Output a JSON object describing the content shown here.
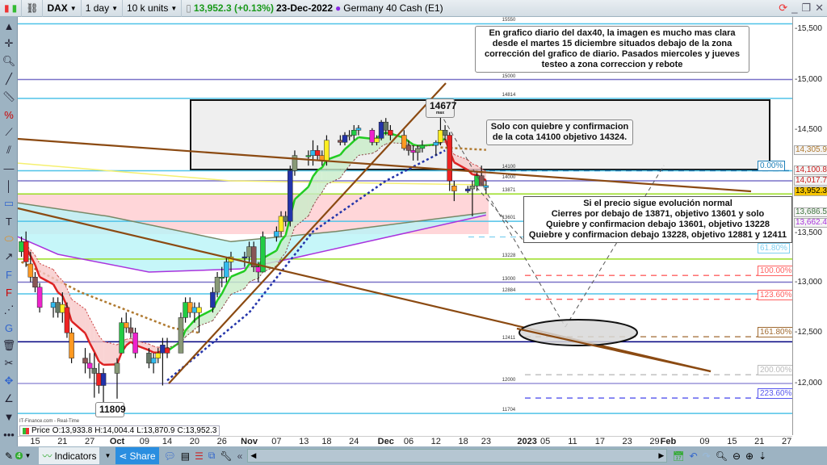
{
  "topbar": {
    "symbol": "DAX",
    "interval": "1 day",
    "units": "10 k units",
    "price": "13,952.3 (+0.13%)",
    "date": "23-Dec-2022",
    "instrument": "Germany 40 Cash (E1)",
    "price_color": "#1a9a1a"
  },
  "source": "IT-Finance.com - Real-Time",
  "ohlc": {
    "label": "Price",
    "o": "O:13,933.8",
    "h": "H:14,004.4",
    "l": "L:13,870.9",
    "c": "C:13,952.3"
  },
  "notes": {
    "main": [
      "En grafico diario del dax40, la imagen es mucho mas clara",
      "desde el martes 15 diciembre situados debajo de la zona",
      "corrección del grafico de diario. Pasados miercoles y jueves",
      "testeo a zona correccion y rebote"
    ],
    "break": [
      "Solo con quiebre y confirmacion",
      "de la cota 14100 objetivo 14324."
    ],
    "normal": [
      "Si el precio sigue evolución normal",
      "Cierres por debajo de 13871, objetivo 13601 y solo",
      "Quiebre y confirmacion debajo 13601, objetivo 13228",
      "Quiebre y confirmacion debajo 13228, objetivo 12881 y 12411"
    ],
    "max": "14677",
    "max_sub": "max",
    "min": "11809"
  },
  "levels": [
    {
      "v": 15550,
      "label": "15550",
      "color": "#4fc3e8"
    },
    {
      "v": 15000,
      "label": "15000",
      "color": "#7a72c8"
    },
    {
      "v": 14814,
      "label": "14814",
      "color": "#4fc3e8"
    },
    {
      "v": 14100,
      "label": "14100",
      "color": "#4fc3e8"
    },
    {
      "v": 14000,
      "label": "14000",
      "color": "#7a72c8"
    },
    {
      "v": 13871,
      "label": "13871",
      "color": "#99dd22"
    },
    {
      "v": 13601,
      "label": "13601",
      "color": "#4fc3e8"
    },
    {
      "v": 13228,
      "label": "13228",
      "color": "#99dd22"
    },
    {
      "v": 13000,
      "label": "13000",
      "color": "#7a72c8"
    },
    {
      "v": 12884,
      "label": "12884",
      "color": "#4fc3e8"
    },
    {
      "v": 12411,
      "label": "12411",
      "color": "#000080"
    },
    {
      "v": 12000,
      "label": "12000",
      "color": "#9a94d8"
    },
    {
      "v": 11704,
      "label": "11704",
      "color": "#4fc3e8"
    }
  ],
  "fibs": [
    {
      "v": 14100,
      "label": "0.00%",
      "color": "#1c7fb8"
    },
    {
      "v": 13510,
      "label": "61.80%",
      "color": "#7fd0f0"
    },
    {
      "v": 13130,
      "label": "100.00%",
      "color": "#ff6060"
    },
    {
      "v": 12895,
      "label": "123.60%",
      "color": "#ff6060"
    },
    {
      "v": 12525,
      "label": "161.80%",
      "color": "#a06a30"
    },
    {
      "v": 12150,
      "label": "200.00%",
      "color": "#bbbbbb"
    },
    {
      "v": 11920,
      "label": "223.60%",
      "color": "#5555ee"
    }
  ],
  "axis": {
    "prices": [
      "15,500",
      "15,000",
      "14,500",
      "13,500",
      "13,000",
      "12,500",
      "12,000"
    ],
    "price_values": [
      15500,
      15000,
      14500,
      13500,
      13000,
      12500,
      12000
    ],
    "tags": [
      {
        "v": 14305.9,
        "label": "14,305.9",
        "color": "#b07a30",
        "bg": "#f4f4f4"
      },
      {
        "v": 14100.8,
        "label": "14,100.8",
        "color": "#cc2222",
        "bg": "#f4f4f4"
      },
      {
        "v": 14017.7,
        "label": "14,017.7",
        "color": "#cc2222",
        "bg": "#f4f4f4"
      },
      {
        "v": 13952.3,
        "label": "13,952.3",
        "color": "#000",
        "bg": "#f5c400"
      },
      {
        "v": 13686.5,
        "label": "13,686.5",
        "color": "#447744",
        "bg": "#f4f4f4"
      },
      {
        "v": 13662.4,
        "label": "13,662.4",
        "color": "#aa33dd",
        "bg": "#f4f4f4"
      }
    ]
  },
  "time_ticks": [
    {
      "d": "2022-09-15",
      "l": "15"
    },
    {
      "d": "2022-09-21",
      "l": "21"
    },
    {
      "d": "2022-09-27",
      "l": "27"
    },
    {
      "d": "2022-10-03",
      "l": "Oct",
      "bold": true
    },
    {
      "d": "2022-10-09",
      "l": "09"
    },
    {
      "d": "2022-10-14",
      "l": "14"
    },
    {
      "d": "2022-10-20",
      "l": "20"
    },
    {
      "d": "2022-10-26",
      "l": "26"
    },
    {
      "d": "2022-11-01",
      "l": "Nov",
      "bold": true
    },
    {
      "d": "2022-11-07",
      "l": "07"
    },
    {
      "d": "2022-11-13",
      "l": "13"
    },
    {
      "d": "2022-11-18",
      "l": "18"
    },
    {
      "d": "2022-11-24",
      "l": "24"
    },
    {
      "d": "2022-12-01",
      "l": "Dec",
      "bold": true
    },
    {
      "d": "2022-12-06",
      "l": "06"
    },
    {
      "d": "2022-12-12",
      "l": "12"
    },
    {
      "d": "2022-12-18",
      "l": "18"
    },
    {
      "d": "2022-12-23",
      "l": "23"
    },
    {
      "d": "2023-01-01",
      "l": "2023",
      "bold": true
    },
    {
      "d": "2023-01-05",
      "l": "05"
    },
    {
      "d": "2023-01-11",
      "l": "11"
    },
    {
      "d": "2023-01-17",
      "l": "17"
    },
    {
      "d": "2023-01-23",
      "l": "23"
    },
    {
      "d": "2023-01-29",
      "l": "29"
    },
    {
      "d": "2023-02-01",
      "l": "Feb",
      "bold": true
    },
    {
      "d": "2023-02-09",
      "l": "09"
    },
    {
      "d": "2023-02-15",
      "l": "15"
    },
    {
      "d": "2023-02-21",
      "l": "21"
    },
    {
      "d": "2023-02-27",
      "l": "27"
    }
  ],
  "bottombar": {
    "indicators": "Indicators",
    "share": "Share",
    "drawings_count": "4"
  },
  "chart_data": {
    "type": "candlestick",
    "up_colors": [
      "#22cc44",
      "#33bbee",
      "#ffee22",
      "#2233aa",
      "#889977"
    ],
    "down_colors": [
      "#ee2222",
      "#ff9922",
      "#885555",
      "#ee22cc",
      "#667766"
    ],
    "candles": [
      [
        "2022-09-12",
        13300,
        13450,
        13250,
        13400
      ],
      [
        "2022-09-13",
        13400,
        13500,
        13150,
        13200
      ],
      [
        "2022-09-14",
        13180,
        13300,
        13000,
        13050
      ],
      [
        "2022-09-15",
        13050,
        13100,
        12900,
        12950
      ],
      [
        "2022-09-16",
        12950,
        12990,
        12700,
        12750
      ],
      [
        "2022-09-19",
        12750,
        12850,
        12650,
        12800
      ],
      [
        "2022-09-20",
        12800,
        12850,
        12650,
        12700
      ],
      [
        "2022-09-21",
        12700,
        12900,
        12600,
        12780
      ],
      [
        "2022-09-22",
        12750,
        12800,
        12450,
        12500
      ],
      [
        "2022-09-23",
        12500,
        12550,
        12200,
        12250
      ],
      [
        "2022-09-26",
        12250,
        12350,
        12100,
        12200
      ],
      [
        "2022-09-27",
        12200,
        12300,
        12050,
        12150
      ],
      [
        "2022-09-28",
        12150,
        12300,
        11860,
        12100
      ],
      [
        "2022-09-29",
        12100,
        12200,
        11900,
        11980
      ],
      [
        "2022-09-30",
        11980,
        12150,
        11809,
        12100
      ],
      [
        "2022-10-03",
        12100,
        12250,
        11850,
        12200
      ],
      [
        "2022-10-04",
        12300,
        12650,
        12300,
        12600
      ],
      [
        "2022-10-05",
        12600,
        12700,
        12500,
        12550
      ],
      [
        "2022-10-06",
        12550,
        12650,
        12450,
        12500
      ],
      [
        "2022-10-07",
        12500,
        12550,
        12250,
        12300
      ],
      [
        "2022-10-10",
        12300,
        12350,
        12150,
        12200
      ],
      [
        "2022-10-11",
        12200,
        12300,
        12100,
        12250
      ],
      [
        "2022-10-12",
        12250,
        12350,
        12200,
        12300
      ],
      [
        "2022-10-13",
        12300,
        12450,
        11980,
        12380
      ],
      [
        "2022-10-14",
        12350,
        12450,
        12250,
        12300
      ],
      [
        "2022-10-17",
        12300,
        12700,
        12300,
        12650
      ],
      [
        "2022-10-18",
        12650,
        12850,
        12600,
        12800
      ],
      [
        "2022-10-19",
        12800,
        12850,
        12650,
        12700
      ],
      [
        "2022-10-20",
        12700,
        12800,
        12600,
        12750
      ],
      [
        "2022-10-21",
        12700,
        12800,
        12500,
        12750
      ],
      [
        "2022-10-24",
        12750,
        12950,
        12700,
        12900
      ],
      [
        "2022-10-25",
        12900,
        13100,
        12850,
        13050
      ],
      [
        "2022-10-26",
        13050,
        13150,
        12950,
        13050
      ],
      [
        "2022-10-27",
        13050,
        13250,
        13000,
        13200
      ],
      [
        "2022-10-28",
        13200,
        13300,
        13100,
        13250
      ],
      [
        "2022-10-31",
        13250,
        13300,
        13150,
        13250
      ],
      [
        "2022-11-01",
        13250,
        13400,
        13200,
        13350
      ],
      [
        "2022-11-02",
        13350,
        13400,
        13100,
        13150
      ],
      [
        "2022-11-03",
        13150,
        13200,
        13000,
        13100
      ],
      [
        "2022-11-04",
        13100,
        13500,
        13100,
        13450
      ],
      [
        "2022-11-07",
        13450,
        13550,
        13400,
        13500
      ],
      [
        "2022-11-08",
        13500,
        13700,
        13450,
        13650
      ],
      [
        "2022-11-09",
        13650,
        13700,
        13550,
        13600
      ],
      [
        "2022-11-10",
        13600,
        14150,
        13550,
        14100
      ],
      [
        "2022-11-11",
        14100,
        14300,
        14050,
        14250
      ],
      [
        "2022-11-14",
        14250,
        14300,
        14150,
        14250
      ],
      [
        "2022-11-15",
        14250,
        14400,
        14150,
        14300
      ],
      [
        "2022-11-16",
        14300,
        14350,
        14200,
        14250
      ],
      [
        "2022-11-17",
        14250,
        14300,
        14150,
        14200
      ],
      [
        "2022-11-18",
        14200,
        14450,
        14150,
        14400
      ],
      [
        "2022-11-21",
        14400,
        14450,
        14350,
        14380
      ],
      [
        "2022-11-22",
        14380,
        14480,
        14350,
        14450
      ],
      [
        "2022-11-23",
        14450,
        14500,
        14400,
        14450
      ],
      [
        "2022-11-24",
        14450,
        14550,
        14400,
        14500
      ],
      [
        "2022-11-25",
        14500,
        14550,
        14450,
        14520
      ],
      [
        "2022-11-28",
        14500,
        14520,
        14350,
        14380
      ],
      [
        "2022-11-29",
        14380,
        14450,
        14350,
        14420
      ],
      [
        "2022-11-30",
        14420,
        14600,
        14400,
        14580
      ],
      [
        "2022-12-01",
        14580,
        14620,
        14450,
        14500
      ],
      [
        "2022-12-02",
        14500,
        14550,
        14400,
        14450
      ],
      [
        "2022-12-05",
        14450,
        14500,
        14300,
        14320
      ],
      [
        "2022-12-06",
        14350,
        14400,
        14250,
        14300
      ],
      [
        "2022-12-07",
        14300,
        14350,
        14200,
        14280
      ],
      [
        "2022-12-08",
        14280,
        14350,
        14200,
        14320
      ],
      [
        "2022-12-09",
        14320,
        14400,
        14280,
        14350
      ],
      [
        "2022-12-12",
        14350,
        14400,
        14250,
        14380
      ],
      [
        "2022-12-13",
        14380,
        14677,
        14350,
        14500
      ],
      [
        "2022-12-14",
        14500,
        14550,
        14400,
        14450
      ],
      [
        "2022-12-15",
        14450,
        14480,
        13900,
        14000
      ],
      [
        "2022-12-16",
        13950,
        14000,
        13800,
        13900
      ],
      [
        "2022-12-19",
        13900,
        13950,
        13880,
        13920
      ],
      [
        "2022-12-20",
        13920,
        14000,
        13650,
        13950
      ],
      [
        "2022-12-21",
        13950,
        14100,
        13900,
        14050
      ],
      [
        "2022-12-22",
        14050,
        14150,
        13950,
        13950
      ],
      [
        "2022-12-23",
        13933.8,
        14004.4,
        13870.9,
        13952.3
      ]
    ],
    "overlays": [
      {
        "color": "#aa33dd",
        "pts": [
          [
            "2022-09-07",
            13530
          ],
          [
            "2022-09-20",
            13275
          ],
          [
            "2022-10-10",
            13100
          ],
          [
            "2022-10-30",
            13130
          ],
          [
            "2022-11-10",
            13230
          ],
          [
            "2022-12-23",
            13662
          ]
        ]
      },
      {
        "color": "#778866",
        "pts": [
          [
            "2022-09-07",
            13810
          ],
          [
            "2022-10-01",
            13650
          ],
          [
            "2022-10-28",
            13400
          ],
          [
            "2022-11-20",
            13500
          ],
          [
            "2022-12-23",
            13686
          ]
        ]
      },
      {
        "color": "#f5f070",
        "pts": [
          [
            "2022-09-07",
            14190
          ],
          [
            "2022-10-28",
            14000
          ],
          [
            "2022-12-23",
            13960
          ]
        ]
      },
      {
        "color": "#2233aa",
        "dash": true,
        "pts": [
          [
            "2022-10-14",
            12030
          ],
          [
            "2022-11-01",
            12700
          ],
          [
            "2022-11-15",
            13500
          ],
          [
            "2022-12-01",
            14000
          ],
          [
            "2022-12-14",
            14300
          ]
        ]
      },
      {
        "color": "#b07a30",
        "dash": true,
        "pts": [
          [
            "2022-09-12",
            13200
          ],
          [
            "2022-09-25",
            12900
          ],
          [
            "2022-10-15",
            12550
          ],
          [
            "2022-10-21",
            12500
          ]
        ]
      },
      {
        "color": "#b07a30",
        "dash": true,
        "pts": [
          [
            "2022-12-13",
            14330
          ],
          [
            "2022-12-23",
            14306
          ]
        ]
      }
    ]
  }
}
